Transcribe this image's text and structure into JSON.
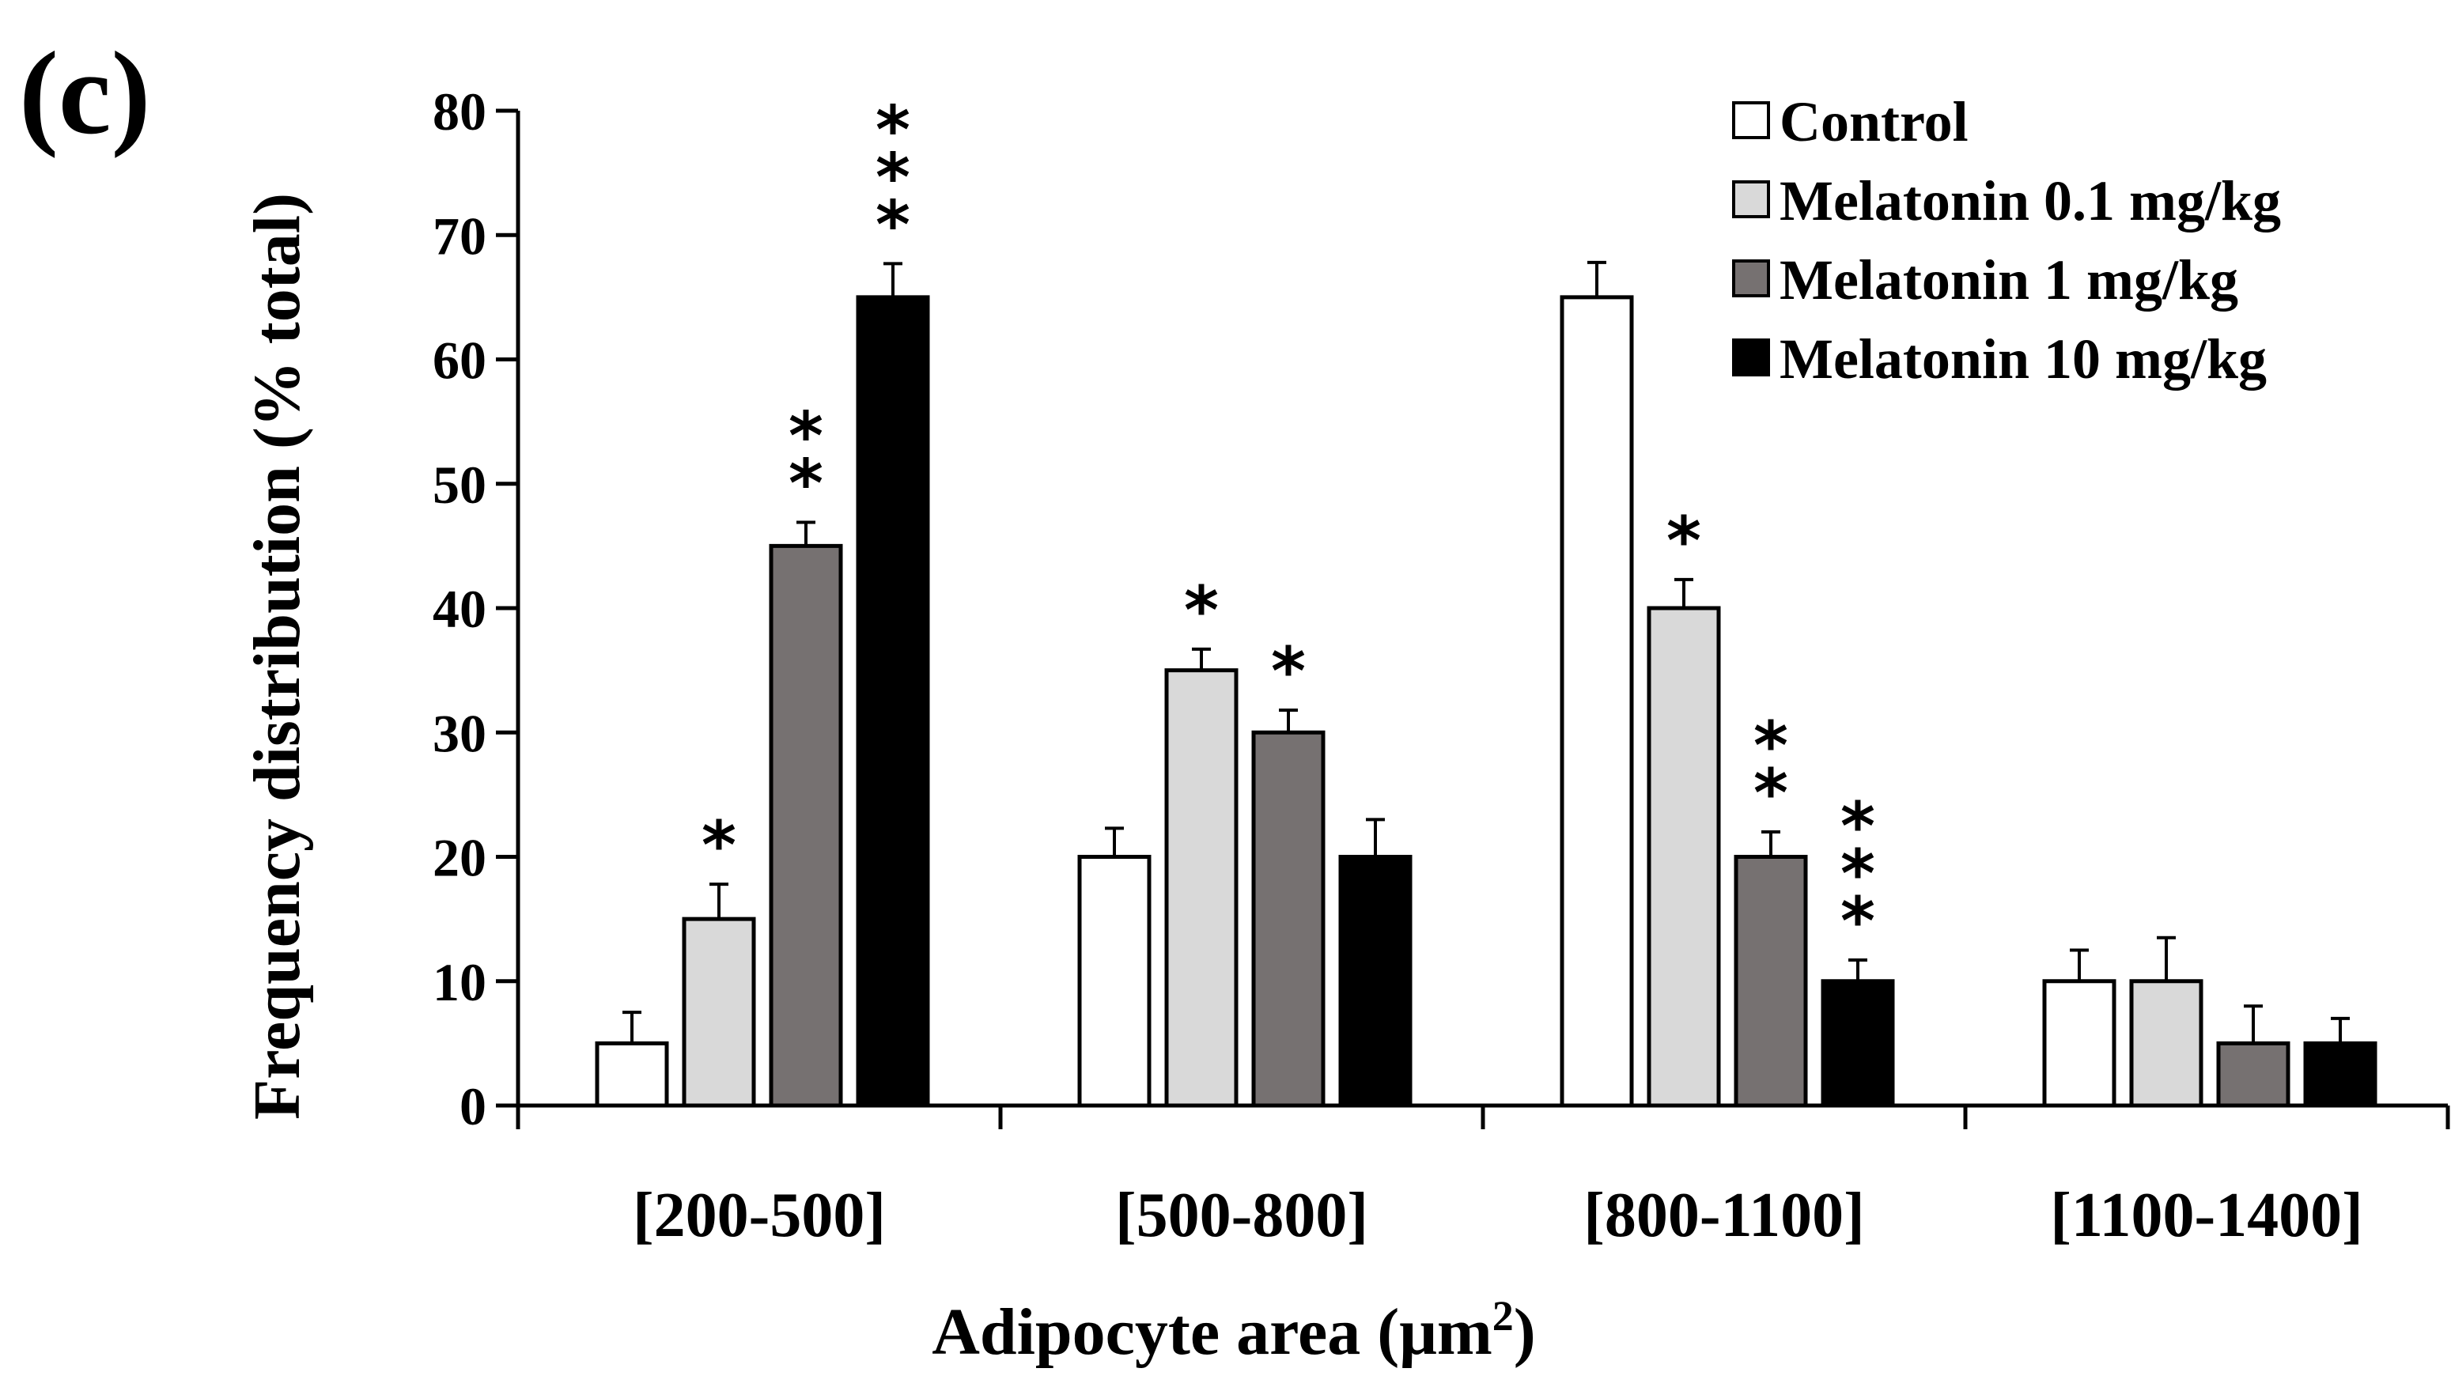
{
  "panel_label": "(c)",
  "chart_data": {
    "type": "bar",
    "title": "",
    "xlabel": "Adipocyte area (μm",
    "xlabel_superscript": "2",
    "xlabel_close": ")",
    "ylabel": "Frequency distribution  (% total)",
    "ylim": [
      0,
      80
    ],
    "yticks": [
      0,
      10,
      20,
      30,
      40,
      50,
      60,
      70,
      80
    ],
    "grid": false,
    "legend_position": "top-right",
    "categories": [
      "[200-500]",
      "[500-800]",
      "[800-1100]",
      "[1100-1400]"
    ],
    "series": [
      {
        "name": "Control",
        "color": "#ffffff",
        "values": [
          5,
          20,
          65,
          10
        ],
        "errors": [
          2.5,
          2.3,
          2.8,
          2.5
        ],
        "significance": [
          "",
          "",
          "",
          ""
        ]
      },
      {
        "name": "Melatonin 0.1 mg/kg",
        "color": "#d9d9d9",
        "values": [
          15,
          35,
          40,
          10
        ],
        "errors": [
          2.8,
          1.7,
          2.3,
          3.5
        ],
        "significance": [
          "*",
          "*",
          "*",
          ""
        ]
      },
      {
        "name": "Melatonin 1 mg/kg",
        "color": "#767171",
        "values": [
          45,
          30,
          20,
          5
        ],
        "errors": [
          1.9,
          1.8,
          2.0,
          3.0
        ],
        "significance": [
          "**",
          "*",
          "**",
          ""
        ]
      },
      {
        "name": "Melatonin 10 mg/kg",
        "color": "#000000",
        "values": [
          65,
          20,
          10,
          5
        ],
        "errors": [
          2.7,
          3.0,
          1.7,
          2.0
        ],
        "significance": [
          "***",
          "",
          "***",
          ""
        ]
      }
    ]
  }
}
